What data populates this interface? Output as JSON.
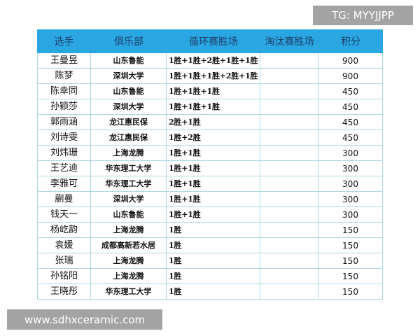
{
  "table": {
    "headers": [
      "选手",
      "俱乐部",
      "循环赛胜场",
      "淘汰赛胜场",
      "积分"
    ],
    "header_color": "#2aa7e2",
    "rows": [
      [
        "王曼昱",
        "山东鲁能",
        "1胜+1胜+2胜+1胜+1胜",
        "",
        "900"
      ],
      [
        "陈梦",
        "深圳大学",
        "1胜+1胜+1胜+2胜+1胜",
        "",
        "900"
      ],
      [
        "陈幸同",
        "山东鲁能",
        "1胜+1胜+1胜",
        "",
        "450"
      ],
      [
        "孙颖莎",
        "深圳大学",
        "1胜+1胜+1胜",
        "",
        "450"
      ],
      [
        "郭雨涵",
        "龙江惠民保",
        "2胜+1胜",
        "",
        "450"
      ],
      [
        "刘诗雯",
        "龙江惠民保",
        "1胜+2胜",
        "",
        "450"
      ],
      [
        "刘炜珊",
        "上海龙腾",
        "1胜+1胜",
        "",
        "300"
      ],
      [
        "王艺迪",
        "华东理工大学",
        "1胜+1胜",
        "",
        "300"
      ],
      [
        "李雅可",
        "华东理工大学",
        "1胜+1胜",
        "",
        "300"
      ],
      [
        "蒯曼",
        "深圳大学",
        "1胜+1胜",
        "",
        "300"
      ],
      [
        "钱天一",
        "山东鲁能",
        "1胜+1胜",
        "",
        "300"
      ],
      [
        "杨屹韵",
        "上海龙腾",
        "1胜",
        "",
        "150"
      ],
      [
        "袁媛",
        "成都高新若水居",
        "1胜",
        "",
        "150"
      ],
      [
        "张瑞",
        "上海龙腾",
        "1胜",
        "",
        "150"
      ],
      [
        "孙铭阳",
        "上海龙腾",
        "1胜",
        "",
        "150"
      ],
      [
        "王晓彤",
        "华东理工大学",
        "1胜",
        "",
        "150"
      ]
    ]
  },
  "watermarks": {
    "top": "TG: MYYJJPP",
    "bottom": "www.sdhxceramic.com"
  }
}
